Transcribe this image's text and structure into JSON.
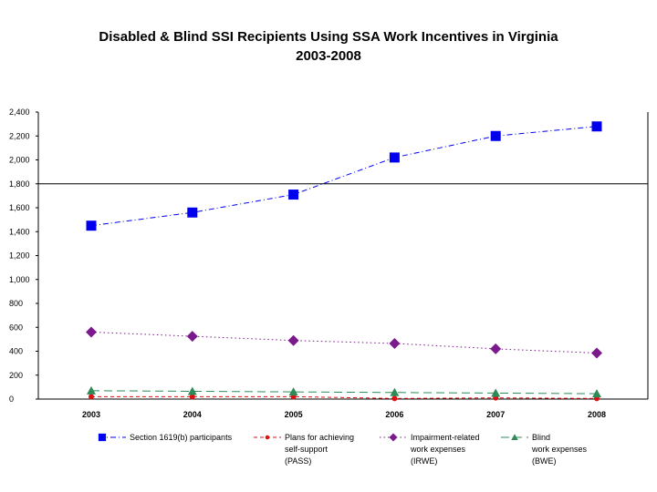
{
  "chart_data": {
    "type": "line",
    "title": "Disabled & Blind SSI Recipients Using SSA Work Incentives in Virginia",
    "subtitle": "2003-2008",
    "xlabel": "",
    "ylabel": "",
    "categories": [
      "2003",
      "2004",
      "2005",
      "2006",
      "2007",
      "2008"
    ],
    "ylim": [
      0,
      2400
    ],
    "yticks": [
      0,
      200,
      400,
      600,
      800,
      1000,
      1200,
      1400,
      1600,
      1800,
      2000,
      2200,
      2400
    ],
    "ytick_labels": [
      "0",
      "200",
      "400",
      "600",
      "800",
      "1,000",
      "1,200",
      "1,400",
      "1,600",
      "1,800",
      "2,000",
      "2,200",
      "2,400"
    ],
    "reference_line": 1800,
    "legend_position": "bottom",
    "series": [
      {
        "name": "Section 1619(b) participants",
        "legend_lines": [
          "Section 1619(b) participants"
        ],
        "values": [
          1450,
          1560,
          1710,
          2020,
          2200,
          2280
        ],
        "color": "#0000ee",
        "marker": "square",
        "dash": "dash-dot"
      },
      {
        "name": "Plans for achieving self-support (PASS)",
        "legend_lines": [
          "Plans for achieving",
          "self-support",
          "(PASS)"
        ],
        "values": [
          20,
          20,
          20,
          5,
          10,
          5
        ],
        "color": "#dd1111",
        "marker": "circle",
        "dash": "dashed"
      },
      {
        "name": "Impairment-related work expenses (IRWE)",
        "legend_lines": [
          "Impairment-related",
          "work expenses",
          "(IRWE)"
        ],
        "values": [
          560,
          525,
          490,
          465,
          420,
          385
        ],
        "color": "#7b1a8c",
        "marker": "diamond",
        "dash": "dotted"
      },
      {
        "name": "Blind work expenses (BWE)",
        "legend_lines": [
          "Blind",
          "work expenses",
          "(BWE)"
        ],
        "values": [
          70,
          65,
          60,
          55,
          50,
          45
        ],
        "color": "#2e8b57",
        "marker": "triangle",
        "dash": "long-dash"
      }
    ]
  }
}
